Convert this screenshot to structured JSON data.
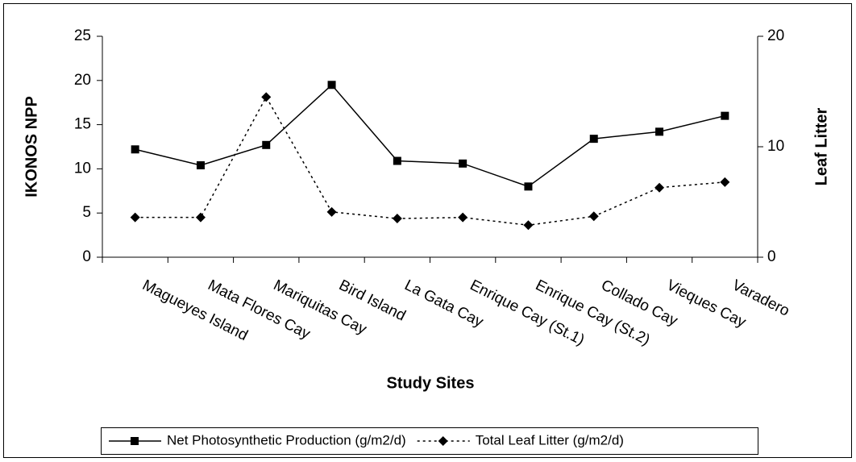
{
  "chart_data": {
    "type": "line",
    "x_label": "Study Sites",
    "y_label": "IKONOS NPP",
    "y2_label": "Leaf Litter",
    "categories": [
      "Magueyes Island",
      "Mata Flores Cay",
      "Mariquitas Cay",
      "Bird Island",
      "La Gata Cay",
      "Enrique Cay (St.1)",
      "Enrique Cay (St.2)",
      "Collado Cay",
      "Vieques Cay",
      "Varadero"
    ],
    "series": [
      {
        "name": "Net Photosynthetic Production (g/m2/d)",
        "color": "#000000",
        "marker": "square",
        "dash": false,
        "values": [
          12.2,
          10.4,
          12.7,
          19.5,
          10.9,
          10.6,
          8.0,
          13.4,
          14.2,
          16.0
        ]
      },
      {
        "name": "Total Leaf Litter (g/m2/d)",
        "color": "#000000",
        "marker": "diamond",
        "dash": true,
        "axis": "y2",
        "values": [
          3.6,
          3.6,
          14.5,
          4.1,
          3.5,
          3.6,
          2.9,
          3.7,
          6.3,
          6.8
        ]
      }
    ],
    "ylim": [
      0,
      25
    ],
    "yticks": [
      0,
      5,
      10,
      15,
      20,
      25
    ],
    "y2lim": [
      0,
      20
    ],
    "y2ticks": [
      0,
      10,
      20
    ],
    "grid": false,
    "legend": "bottom"
  }
}
